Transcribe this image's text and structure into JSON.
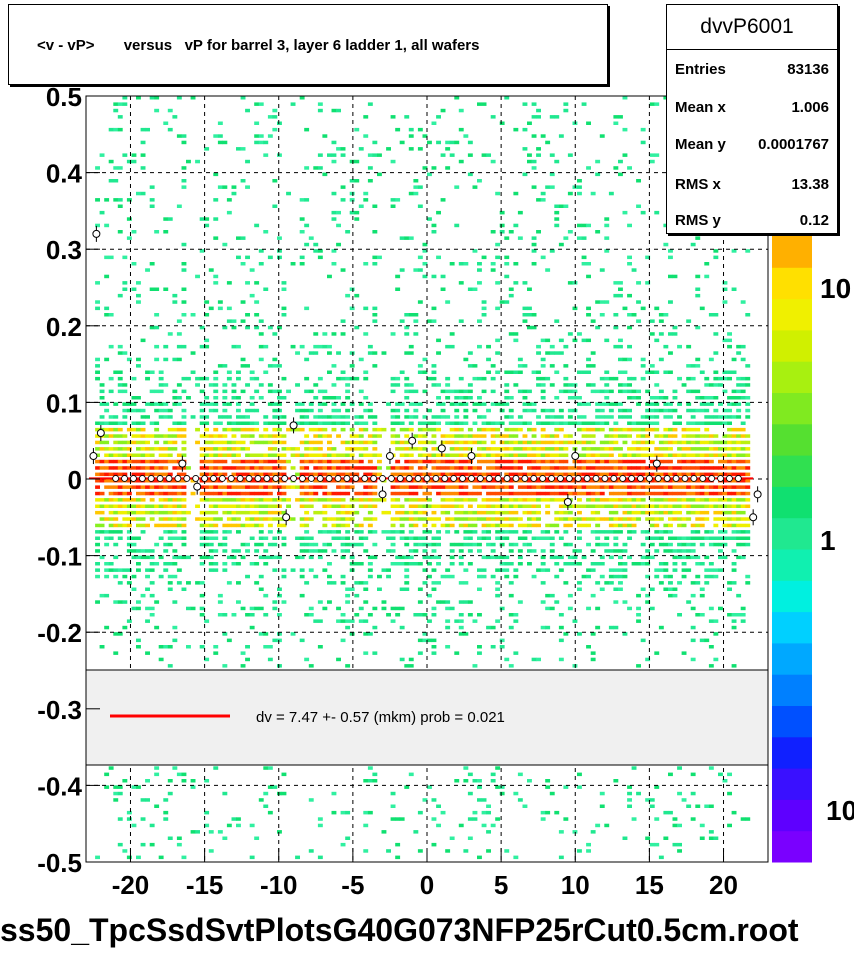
{
  "title": "<v - vP>       versus   vP for barrel 3, layer 6 ladder 1, all wafers",
  "stats": {
    "name": "dvvP6001",
    "rows": [
      {
        "label": "Entries",
        "value": "83136"
      },
      {
        "label": "Mean x",
        "value": "1.006"
      },
      {
        "label": "Mean y",
        "value": "0.0001767"
      },
      {
        "label": "RMS x",
        "value": "13.38"
      },
      {
        "label": "RMS y",
        "value": "0.12"
      }
    ]
  },
  "fit_legend": "dv =    7.47 +-  0.57 (mkm) prob = 0.021",
  "file_label": "ss50_TpcSsdSvtPlotsG40G073NFP25rCut0.5cm.root",
  "colors": {
    "fit_line": "#ff0000",
    "profile_marker": "#ffffff"
  },
  "chart_data": {
    "type": "heatmap",
    "x_axis": {
      "range": [
        -23,
        23
      ],
      "ticks": [
        -20,
        -15,
        -10,
        -5,
        0,
        5,
        10,
        15,
        20
      ],
      "grid": true
    },
    "y_axis": {
      "range": [
        -0.5,
        0.5
      ],
      "ticks": [
        -0.5,
        -0.4,
        -0.3,
        -0.2,
        -0.1,
        0,
        0.1,
        0.2,
        0.3,
        0.4,
        0.5
      ],
      "grid": true
    },
    "color_scale": {
      "type": "log",
      "labels": [
        "1",
        "10"
      ],
      "top_label_partial": "10"
    },
    "profile_points": [
      {
        "x": -22.5,
        "y": 0.03
      },
      {
        "x": -22.3,
        "y": 0.32
      },
      {
        "x": -22.0,
        "y": 0.06
      },
      {
        "x": -16.5,
        "y": 0.02
      },
      {
        "x": -15.5,
        "y": -0.01
      },
      {
        "x": -9.5,
        "y": -0.05
      },
      {
        "x": -9.0,
        "y": 0.07
      },
      {
        "x": -3.0,
        "y": -0.02
      },
      {
        "x": -2.5,
        "y": 0.03
      },
      {
        "x": -1.0,
        "y": 0.05
      },
      {
        "x": 1.0,
        "y": 0.04
      },
      {
        "x": 3.0,
        "y": 0.03
      },
      {
        "x": 9.5,
        "y": -0.03
      },
      {
        "x": 10.0,
        "y": 0.03
      },
      {
        "x": 15.5,
        "y": 0.02
      },
      {
        "x": 22.0,
        "y": -0.05
      },
      {
        "x": 22.3,
        "y": -0.02
      }
    ],
    "fit": {
      "type": "constant",
      "value_mkm": 7.47,
      "error_mkm": 0.57,
      "prob": 0.021
    }
  }
}
